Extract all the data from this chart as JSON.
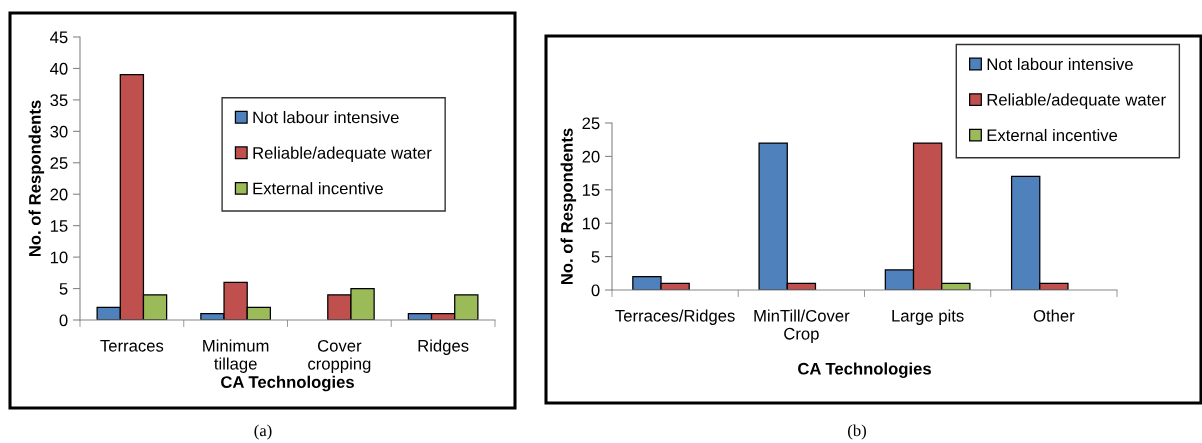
{
  "chart_data": [
    {
      "type": "bar",
      "xlabel": "CA Technologies",
      "ylabel": "No. of Respondents",
      "categories": [
        "Terraces",
        "Minimum\ntillage",
        "Cover\ncropping",
        "Ridges"
      ],
      "series": [
        {
          "name": "Not labour intensive",
          "color": "#4f81bd",
          "values": [
            2,
            1,
            0,
            1
          ]
        },
        {
          "name": "Reliable/adequate water",
          "color": "#c0504d",
          "values": [
            39,
            6,
            4,
            1
          ]
        },
        {
          "name": "External incentive",
          "color": "#9bbb59",
          "values": [
            4,
            2,
            5,
            4
          ]
        }
      ],
      "ylim": [
        0,
        45
      ],
      "yticks": [
        0,
        5,
        10,
        15,
        20,
        25,
        30,
        35,
        40,
        45
      ],
      "grid": false,
      "legend": "top right",
      "annotations": [
        "(a)"
      ]
    },
    {
      "type": "bar",
      "xlabel": "CA Technologies",
      "ylabel": "No. of Respondents",
      "categories": [
        "Terraces/Ridges",
        "MinTill/Cover\nCrop",
        "Large pits",
        "Other"
      ],
      "series": [
        {
          "name": "Not labour intensive",
          "color": "#4f81bd",
          "values": [
            2,
            22,
            3,
            17
          ]
        },
        {
          "name": "Reliable/adequate water",
          "color": "#c0504d",
          "values": [
            1,
            1,
            22,
            1
          ]
        },
        {
          "name": "External incentive",
          "color": "#9bbb59",
          "values": [
            0,
            0,
            1,
            0
          ]
        }
      ],
      "ylim": [
        0,
        25
      ],
      "yticks": [
        0,
        5,
        10,
        15,
        20,
        25
      ],
      "grid": false,
      "legend": "top right",
      "annotations": [
        "(b)"
      ]
    }
  ]
}
